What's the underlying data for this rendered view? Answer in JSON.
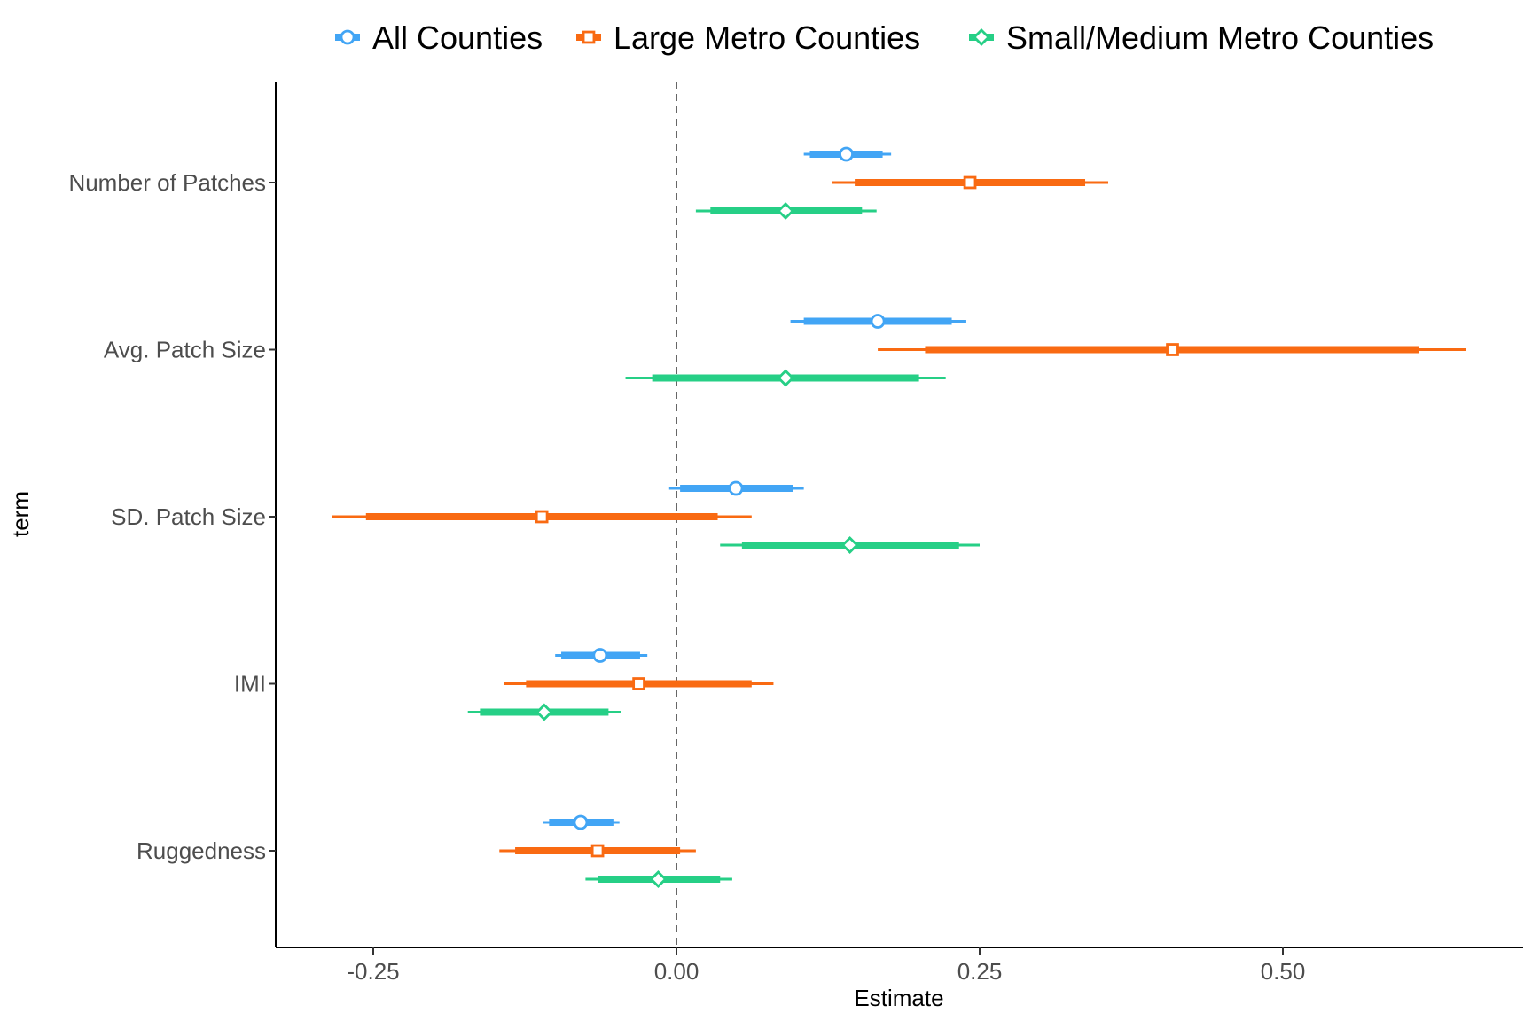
{
  "chart_data": {
    "type": "coefficient-plot",
    "xlabel": "Estimate",
    "ylabel": "term",
    "xlim": [
      -0.33,
      0.7
    ],
    "x_ticks": [
      -0.25,
      0.0,
      0.25,
      0.5
    ],
    "x_tick_labels": [
      "-0.25",
      "0.00",
      "0.25",
      "0.50"
    ],
    "reference_line": 0.0,
    "grid": false,
    "legend_position": "top",
    "terms": [
      "Number of Patches",
      "Avg. Patch Size",
      "SD. Patch Size",
      "IMI",
      "Ruggedness"
    ],
    "series": [
      {
        "name": "All Counties",
        "color": "#42A5F5",
        "marker": "circle",
        "points": [
          {
            "term": "Number of Patches",
            "estimate": 0.14,
            "inner": [
              0.11,
              0.17
            ],
            "outer": [
              0.105,
              0.177
            ]
          },
          {
            "term": "Avg. Patch Size",
            "estimate": 0.166,
            "inner": [
              0.105,
              0.227
            ],
            "outer": [
              0.094,
              0.239
            ]
          },
          {
            "term": "SD. Patch Size",
            "estimate": 0.049,
            "inner": [
              0.003,
              0.096
            ],
            "outer": [
              -0.006,
              0.105
            ]
          },
          {
            "term": "IMI",
            "estimate": -0.063,
            "inner": [
              -0.095,
              -0.03
            ],
            "outer": [
              -0.1,
              -0.024
            ]
          },
          {
            "term": "Ruggedness",
            "estimate": -0.079,
            "inner": [
              -0.105,
              -0.052
            ],
            "outer": [
              -0.11,
              -0.047
            ]
          }
        ]
      },
      {
        "name": "Large Metro Counties",
        "color": "#F96A12",
        "marker": "square",
        "points": [
          {
            "term": "Number of Patches",
            "estimate": 0.242,
            "inner": [
              0.147,
              0.337
            ],
            "outer": [
              0.128,
              0.356
            ]
          },
          {
            "term": "Avg. Patch Size",
            "estimate": 0.409,
            "inner": [
              0.205,
              0.612
            ],
            "outer": [
              0.166,
              0.651
            ]
          },
          {
            "term": "SD. Patch Size",
            "estimate": -0.111,
            "inner": [
              -0.256,
              0.034
            ],
            "outer": [
              -0.284,
              0.062
            ]
          },
          {
            "term": "IMI",
            "estimate": -0.031,
            "inner": [
              -0.124,
              0.062
            ],
            "outer": [
              -0.142,
              0.08
            ]
          },
          {
            "term": "Ruggedness",
            "estimate": -0.065,
            "inner": [
              -0.133,
              0.003
            ],
            "outer": [
              -0.146,
              0.016
            ]
          }
        ]
      },
      {
        "name": "Small/Medium Metro Counties",
        "color": "#26CF86",
        "marker": "diamond",
        "points": [
          {
            "term": "Number of Patches",
            "estimate": 0.09,
            "inner": [
              0.028,
              0.153
            ],
            "outer": [
              0.016,
              0.165
            ]
          },
          {
            "term": "Avg. Patch Size",
            "estimate": 0.09,
            "inner": [
              -0.02,
              0.2
            ],
            "outer": [
              -0.042,
              0.222
            ]
          },
          {
            "term": "SD. Patch Size",
            "estimate": 0.143,
            "inner": [
              0.054,
              0.233
            ],
            "outer": [
              0.036,
              0.25
            ]
          },
          {
            "term": "IMI",
            "estimate": -0.109,
            "inner": [
              -0.162,
              -0.056
            ],
            "outer": [
              -0.172,
              -0.046
            ]
          },
          {
            "term": "Ruggedness",
            "estimate": -0.015,
            "inner": [
              -0.065,
              0.036
            ],
            "outer": [
              -0.075,
              0.046
            ]
          }
        ]
      }
    ]
  }
}
